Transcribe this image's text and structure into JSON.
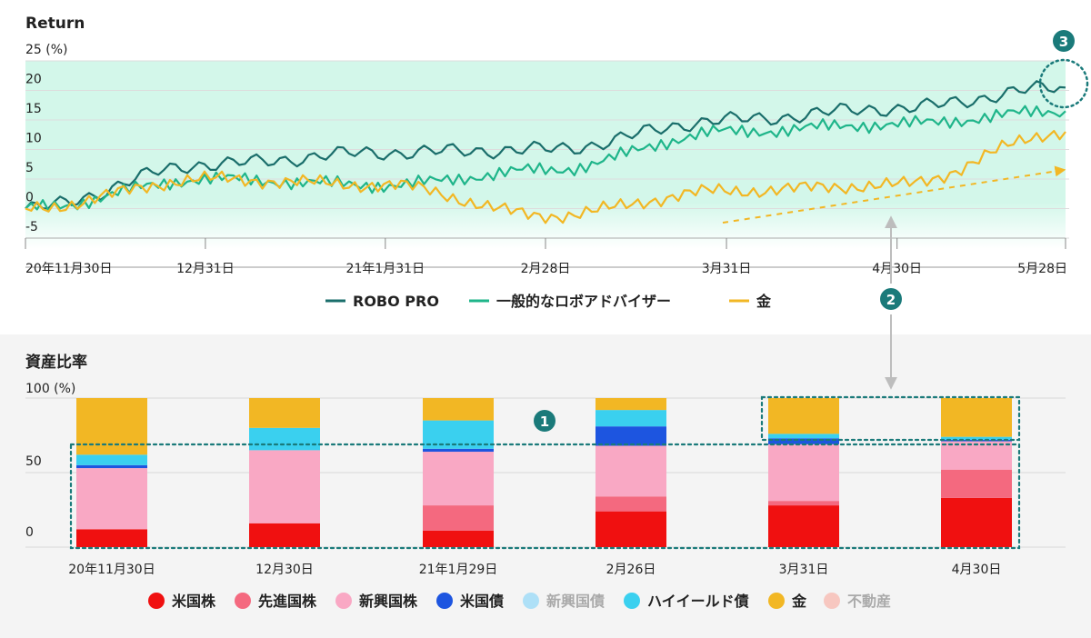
{
  "colors": {
    "robo": "#1a6e6b",
    "robo_advisor": "#1fb58a",
    "gold_line": "#f2b724",
    "band": "#d3f7ea",
    "grid": "#dddddd",
    "annotation": "#1a7a7a",
    "arrow": "#bdbdbd"
  },
  "chart_data": [
    {
      "type": "line",
      "title": "Return",
      "ylabel": "(%)",
      "ylim": [
        -7,
        25
      ],
      "yticks": [
        "25 (%)",
        "20",
        "15",
        "10",
        "5",
        "0",
        "-5"
      ],
      "xticks": [
        "20年11月30日",
        "12月31日",
        "21年1月31日",
        "2月28日",
        "3月31日",
        "4月30日",
        "5月28日"
      ],
      "x": [
        "20年11月30日",
        "12月31日",
        "21年1月31日",
        "2月28日",
        "3月31日",
        "4月30日",
        "5月28日"
      ],
      "series": [
        {
          "name": "ROBO PRO",
          "values": [
            0,
            7.5,
            9.5,
            10,
            15,
            17,
            20.5
          ]
        },
        {
          "name": "一般的なロボアドバイザー",
          "values": [
            0,
            5,
            4,
            6.5,
            13,
            14.3,
            16.5
          ]
        },
        {
          "name": "金",
          "values": [
            0,
            5,
            4,
            -1.2,
            3,
            4,
            13
          ]
        }
      ],
      "legend_position": "bottom"
    },
    {
      "type": "bar",
      "stacked": true,
      "title": "資産比率",
      "ylabel": "(%)",
      "ylim": [
        0,
        100
      ],
      "yticks": [
        "100 (%)",
        "50",
        "0"
      ],
      "categories": [
        "20年11月30日",
        "12月30日",
        "21年1月29日",
        "2月26日",
        "3月31日",
        "4月30日"
      ],
      "series": [
        {
          "name": "米国株",
          "color": "#f01010",
          "values": [
            12,
            16,
            11,
            24,
            28,
            33
          ]
        },
        {
          "name": "先進国株",
          "color": "#f4697f",
          "values": [
            0,
            0,
            17,
            10,
            3,
            19
          ]
        },
        {
          "name": "新興国株",
          "color": "#f9a8c4",
          "values": [
            41,
            49,
            36,
            34,
            38,
            19
          ]
        },
        {
          "name": "米国債",
          "color": "#1d55e0",
          "values": [
            2,
            0,
            2,
            13,
            4,
            1
          ]
        },
        {
          "name": "新興国債",
          "color": "#aee0f7",
          "values": [
            0,
            0,
            0,
            0,
            0,
            0
          ]
        },
        {
          "name": "ハイイールド債",
          "color": "#3ad0ef",
          "values": [
            7,
            15,
            19,
            11,
            3,
            2
          ]
        },
        {
          "name": "金",
          "color": "#f2b724",
          "values": [
            38,
            20,
            15,
            8,
            24,
            26
          ]
        },
        {
          "name": "不動産",
          "color": "#f7c7c0",
          "values": [
            0,
            0,
            0,
            0,
            0,
            0
          ]
        }
      ],
      "legend_position": "bottom"
    }
  ],
  "annotations": {
    "badge1": "1",
    "badge2": "2",
    "badge3": "3"
  }
}
